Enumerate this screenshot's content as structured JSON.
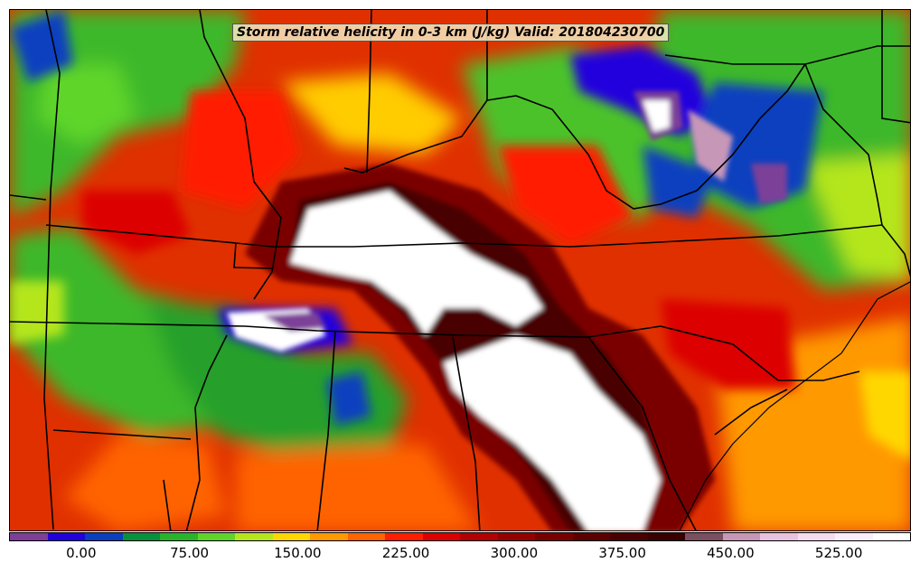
{
  "title": "Storm relative helicity in 0-3 km (J/kg) Valid: 201804230700",
  "colorbar": {
    "colors": [
      "#7d3f98",
      "#2200dd",
      "#0a3fbf",
      "#08913c",
      "#28b42a",
      "#5fd52a",
      "#b5e61c",
      "#ffd700",
      "#ff9900",
      "#ff6400",
      "#ff1e00",
      "#dc0000",
      "#b40000",
      "#960000",
      "#7a0000",
      "#5e0000",
      "#4a0000",
      "#3a0000",
      "#7a4f5f",
      "#c797b7",
      "#e8c2df",
      "#f5dcef",
      "#fbeefb",
      "#ffffff"
    ],
    "ticks": [
      {
        "label": "0.00",
        "value": 0
      },
      {
        "label": "75.00",
        "value": 75
      },
      {
        "label": "150.00",
        "value": 150
      },
      {
        "label": "225.00",
        "value": 225
      },
      {
        "label": "300.00",
        "value": 300
      },
      {
        "label": "375.00",
        "value": 375
      },
      {
        "label": "450.00",
        "value": 450
      },
      {
        "label": "525.00",
        "value": 525
      }
    ],
    "min": -50,
    "max": 575
  }
}
